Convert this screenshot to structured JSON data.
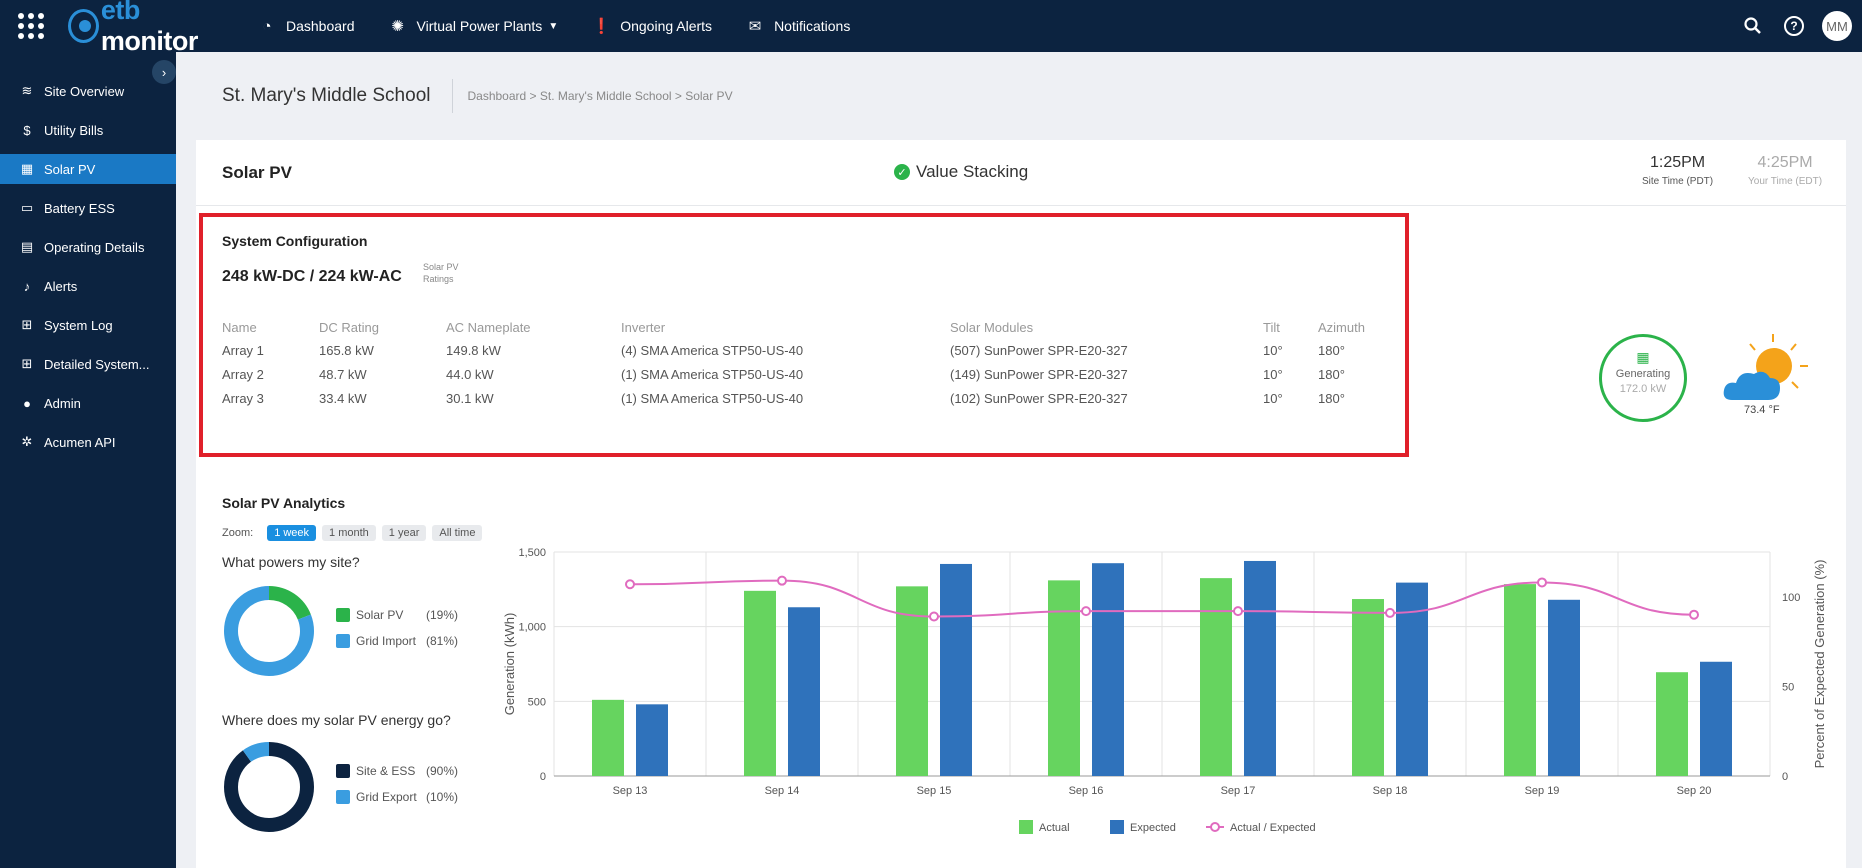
{
  "topbar": {
    "logo_prefix": "etb",
    "logo_suffix": "monitor",
    "nav": [
      {
        "label": "Dashboard",
        "icon": "dashboard-gauge-icon"
      },
      {
        "label": "Virtual Power Plants",
        "icon": "vpp-icon"
      },
      {
        "label": "Ongoing Alerts",
        "icon": "alert-icon"
      },
      {
        "label": "Notifications",
        "icon": "envelope-icon"
      }
    ],
    "help": "?",
    "avatar": "MM"
  },
  "sidebar": {
    "items": [
      {
        "label": "Site Overview",
        "icon": "layers-icon"
      },
      {
        "label": "Utility Bills",
        "icon": "dollar-icon"
      },
      {
        "label": "Solar PV",
        "icon": "solar-panel-icon",
        "active": true
      },
      {
        "label": "Battery ESS",
        "icon": "battery-icon"
      },
      {
        "label": "Operating Details",
        "icon": "calendar-icon"
      },
      {
        "label": "Alerts",
        "icon": "bell-icon"
      },
      {
        "label": "System Log",
        "icon": "table-icon"
      },
      {
        "label": "Detailed System...",
        "icon": "grid-icon"
      },
      {
        "label": "Admin",
        "icon": "user-gear-icon"
      },
      {
        "label": "Acumen API",
        "icon": "gears-icon"
      }
    ]
  },
  "header": {
    "title": "St. Mary's Middle School",
    "breadcrumb": "Dashboard > St. Mary's Middle School > Solar PV"
  },
  "card": {
    "title": "Solar PV",
    "status": "Value Stacking",
    "site_time": "1:25PM",
    "site_time_label": "Site Time (PDT)",
    "user_time": "4:25PM",
    "user_time_label": "Your Time (EDT)"
  },
  "system_config": {
    "title": "System Configuration",
    "rating": "248 kW-DC / 224 kW-AC",
    "rating_label_1": "Solar PV",
    "rating_label_2": "Ratings",
    "columns": [
      "Name",
      "DC Rating",
      "AC Nameplate",
      "Inverter",
      "Solar Modules",
      "Tilt",
      "Azimuth"
    ],
    "rows": [
      [
        "Array 1",
        "165.8 kW",
        "149.8 kW",
        "(4) SMA America STP50-US-40",
        "(507) SunPower SPR-E20-327",
        "10°",
        "180°"
      ],
      [
        "Array 2",
        "48.7 kW",
        "44.0 kW",
        "(1) SMA America STP50-US-40",
        "(149) SunPower SPR-E20-327",
        "10°",
        "180°"
      ],
      [
        "Array 3",
        "33.4 kW",
        "30.1 kW",
        "(1) SMA America STP50-US-40",
        "(102) SunPower SPR-E20-327",
        "10°",
        "180°"
      ]
    ]
  },
  "status": {
    "label": "Generating",
    "value": "172.0 kW",
    "temperature": "73.4 °F"
  },
  "analytics": {
    "title": "Solar PV Analytics",
    "zoom_label": "Zoom:",
    "zoom_options": [
      "1 week",
      "1 month",
      "1 year",
      "All time"
    ],
    "q1": "What powers my site?",
    "q2": "Where does my solar PV energy go?",
    "powers": [
      {
        "label": "Solar PV",
        "pct": "(19%)",
        "value": 19,
        "color": "#2bb34a"
      },
      {
        "label": "Grid Import",
        "pct": "(81%)",
        "value": 81,
        "color": "#3a9de0"
      }
    ],
    "goes": [
      {
        "label": "Site & ESS",
        "pct": "(90%)",
        "value": 90,
        "color": "#0c2340"
      },
      {
        "label": "Grid Export",
        "pct": "(10%)",
        "value": 10,
        "color": "#3a9de0"
      }
    ]
  },
  "chart_data": {
    "type": "bar",
    "categories": [
      "Sep 13",
      "Sep 14",
      "Sep 15",
      "Sep 16",
      "Sep 17",
      "Sep 18",
      "Sep 19",
      "Sep 20"
    ],
    "series": [
      {
        "name": "Actual",
        "type": "bar",
        "color": "#66d45f",
        "values": [
          510,
          1240,
          1270,
          1310,
          1325,
          1185,
          1285,
          695
        ]
      },
      {
        "name": "Expected",
        "type": "bar",
        "color": "#2f72bb",
        "values": [
          480,
          1130,
          1420,
          1425,
          1440,
          1295,
          1180,
          765
        ]
      },
      {
        "name": "Actual / Expected",
        "type": "line",
        "axis": "right",
        "color": "#e06bbf",
        "values": [
          107,
          109,
          89,
          92,
          92,
          91,
          108,
          90
        ]
      }
    ],
    "ylabel": "Generation (kWh)",
    "y2label": "Percent of Expected Generation (%)",
    "ylim": [
      0,
      1500
    ],
    "y2lim": [
      0,
      125
    ],
    "yticks": [
      "0",
      "500",
      "1,000",
      "1,500"
    ],
    "y2ticks": [
      "0",
      "50",
      "100"
    ],
    "grid": true,
    "legend": "bottom"
  }
}
